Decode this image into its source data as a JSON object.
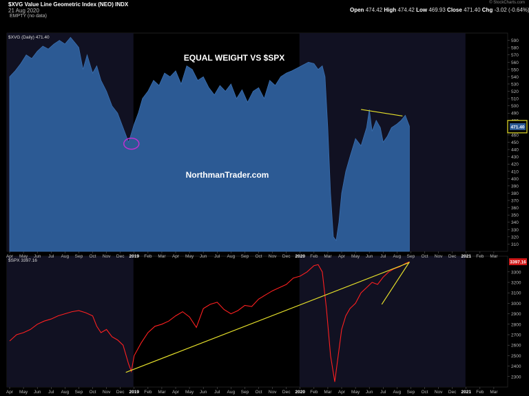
{
  "header": {
    "title": "$XVG Value Line Geometric Index (NEO) INDX",
    "date": "21 Aug 2020",
    "empty_note": "EMPTY (no data)",
    "source": "© StockCharts.com",
    "quote": {
      "open_label": "Open",
      "open": "474.42",
      "high_label": "High",
      "high": "474.42",
      "low_label": "Low",
      "low": "469.93",
      "close_label": "Close",
      "close": "471.40",
      "chg_label": "Chg",
      "chg": "-3.02 (-0.64%)"
    }
  },
  "colors": {
    "background": "#000000",
    "shade": "#111122",
    "xvg_fill": "#2c5a94",
    "spx_line": "#ff2020",
    "trendline": "#e6e02a",
    "circle": "#c030d0"
  },
  "chart_data": [
    {
      "type": "area",
      "title": "EQUAL WEIGHT VS $SPX",
      "watermark": "NorthmanTrader.com",
      "legend": "$XVG (Daily) 471.40",
      "last_value_label": "471.40",
      "ylim": [
        300,
        600
      ],
      "y_ticks": [
        310,
        320,
        330,
        340,
        350,
        360,
        370,
        380,
        390,
        400,
        410,
        420,
        430,
        440,
        450,
        460,
        470,
        480,
        490,
        500,
        510,
        520,
        530,
        540,
        550,
        560,
        570,
        580,
        590
      ],
      "x_ticks": [
        "Apr",
        "May",
        "Jun",
        "Jul",
        "Aug",
        "Sep",
        "Oct",
        "Nov",
        "Dec",
        "2019",
        "Feb",
        "Mar",
        "Apr",
        "May",
        "Jun",
        "Jul",
        "Aug",
        "Sep",
        "Oct",
        "Nov",
        "Dec",
        "2020",
        "Feb",
        "Mar",
        "Apr",
        "May",
        "Jun",
        "Jul",
        "Aug",
        "Sep",
        "Oct",
        "Nov",
        "Dec",
        "2021",
        "Feb",
        "Mar"
      ],
      "x_months_from_apr_2018": [
        0,
        1,
        2,
        3,
        4,
        5,
        6,
        7,
        8,
        9,
        10,
        11,
        12,
        13,
        14,
        15,
        16,
        17,
        18,
        19,
        20,
        21,
        22,
        23,
        24,
        25,
        26,
        27,
        28,
        29,
        30,
        31,
        32,
        33,
        34,
        35
      ],
      "xlim_months": [
        -0.2,
        36
      ],
      "series": [
        {
          "x": [
            0.0,
            0.4,
            0.8,
            1.2,
            1.6,
            2.0,
            2.4,
            2.8,
            3.2,
            3.6,
            4.0,
            4.4,
            4.8,
            5.0,
            5.3,
            5.6,
            6.0,
            6.3,
            6.6,
            7.0,
            7.4,
            7.8,
            8.2,
            8.6,
            8.8,
            9.0,
            9.3,
            9.6,
            10.0,
            10.4,
            10.8,
            11.2,
            11.6,
            12.0,
            12.4,
            12.8,
            13.2,
            13.6,
            14.0,
            14.4,
            14.8,
            15.2,
            15.6,
            16.0,
            16.4,
            16.8,
            17.2,
            17.6,
            18.0,
            18.4,
            18.8,
            19.2,
            19.6,
            20.0,
            20.4,
            20.8,
            21.2,
            21.6,
            22.0,
            22.3,
            22.6,
            22.8,
            23.0,
            23.2,
            23.4,
            23.6,
            23.8,
            24.0,
            24.3,
            24.6,
            25.0,
            25.4,
            25.8,
            26.0,
            26.2,
            26.5,
            26.8,
            27.0,
            27.3,
            27.6,
            28.0,
            28.3,
            28.6,
            28.9
          ],
          "y": [
            540,
            548,
            558,
            570,
            565,
            575,
            582,
            578,
            585,
            590,
            585,
            594,
            585,
            580,
            550,
            570,
            545,
            555,
            535,
            520,
            500,
            490,
            470,
            450,
            462,
            475,
            490,
            510,
            520,
            535,
            528,
            545,
            540,
            548,
            530,
            555,
            550,
            535,
            540,
            525,
            515,
            528,
            520,
            530,
            510,
            522,
            505,
            520,
            525,
            510,
            535,
            528,
            540,
            545,
            548,
            552,
            556,
            560,
            558,
            550,
            555,
            540,
            470,
            380,
            320,
            315,
            340,
            380,
            410,
            430,
            455,
            445,
            470,
            495,
            465,
            480,
            470,
            450,
            458,
            470,
            475,
            480,
            487,
            472
          ]
        }
      ],
      "trendline": {
        "from": {
          "x": 25.4,
          "y": 495
        },
        "to": {
          "x": 28.4,
          "y": 486
        }
      },
      "annotation": "circle at Dec 2018 low",
      "circle_at": {
        "x": 8.8,
        "y": 448
      }
    },
    {
      "type": "line",
      "legend": "$SPX 3397.16",
      "last_value_label": "3397.16",
      "ylim": [
        2200,
        3450
      ],
      "y_ticks": [
        2300,
        2400,
        2500,
        2600,
        2700,
        2800,
        2900,
        3000,
        3100,
        3200,
        3300
      ],
      "x_ticks": [
        "Apr",
        "May",
        "Jun",
        "Jul",
        "Aug",
        "Sep",
        "Oct",
        "Nov",
        "Dec",
        "2019",
        "Feb",
        "Mar",
        "Apr",
        "May",
        "Jun",
        "Jul",
        "Aug",
        "Sep",
        "Oct",
        "Nov",
        "Dec",
        "2020",
        "Feb",
        "Mar",
        "Apr",
        "May",
        "Jun",
        "Jul",
        "Aug",
        "Sep",
        "Oct",
        "Nov",
        "Dec",
        "2021",
        "Feb",
        "Mar"
      ],
      "series": [
        {
          "x": [
            0.0,
            0.5,
            1.0,
            1.5,
            2.0,
            2.5,
            3.0,
            3.5,
            4.0,
            4.5,
            5.0,
            5.5,
            6.0,
            6.3,
            6.6,
            7.0,
            7.4,
            7.8,
            8.2,
            8.6,
            8.8,
            9.0,
            9.5,
            10.0,
            10.5,
            11.0,
            11.5,
            12.0,
            12.5,
            13.0,
            13.5,
            14.0,
            14.5,
            15.0,
            15.5,
            16.0,
            16.5,
            17.0,
            17.5,
            18.0,
            18.5,
            19.0,
            19.5,
            20.0,
            20.5,
            21.0,
            21.5,
            22.0,
            22.3,
            22.6,
            22.9,
            23.2,
            23.5,
            23.8,
            24.0,
            24.3,
            24.6,
            25.0,
            25.4,
            25.8,
            26.2,
            26.6,
            27.0,
            27.4,
            27.8,
            28.2,
            28.6,
            28.9
          ],
          "y": [
            2640,
            2700,
            2720,
            2750,
            2800,
            2830,
            2850,
            2880,
            2900,
            2920,
            2930,
            2910,
            2880,
            2780,
            2720,
            2750,
            2680,
            2650,
            2600,
            2420,
            2350,
            2500,
            2620,
            2720,
            2780,
            2800,
            2830,
            2880,
            2920,
            2870,
            2770,
            2950,
            2990,
            3010,
            2940,
            2900,
            2930,
            2980,
            2970,
            3040,
            3080,
            3120,
            3150,
            3180,
            3240,
            3260,
            3300,
            3360,
            3370,
            3300,
            2950,
            2500,
            2250,
            2550,
            2750,
            2880,
            2950,
            3000,
            3100,
            3150,
            3200,
            3180,
            3250,
            3300,
            3330,
            3350,
            3380,
            3397
          ]
        }
      ],
      "trendlines": [
        {
          "from": {
            "x": 8.4,
            "y": 2340
          },
          "to": {
            "x": 28.9,
            "y": 3390
          }
        },
        {
          "from": {
            "x": 26.9,
            "y": 2990
          },
          "to": {
            "x": 28.9,
            "y": 3395
          }
        }
      ]
    }
  ]
}
